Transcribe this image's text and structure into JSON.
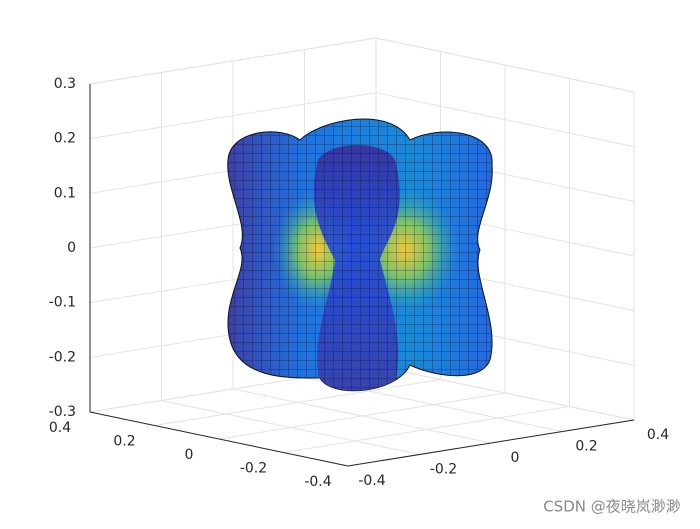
{
  "chart_data": {
    "type": "surface3d",
    "xlim": [
      -0.4,
      0.4
    ],
    "xticks": [
      -0.4,
      -0.2,
      0,
      0.2,
      0.4
    ],
    "ylim": [
      -0.4,
      0.4
    ],
    "yticks": [
      -0.4,
      -0.2,
      0,
      0.2,
      0.4
    ],
    "zlim": [
      -0.3,
      0.3
    ],
    "zticks": [
      -0.3,
      -0.2,
      -0.1,
      0,
      0.1,
      0.2,
      0.3
    ],
    "grid": true
  },
  "watermark": "CSDN @夜晓岚渺渺"
}
